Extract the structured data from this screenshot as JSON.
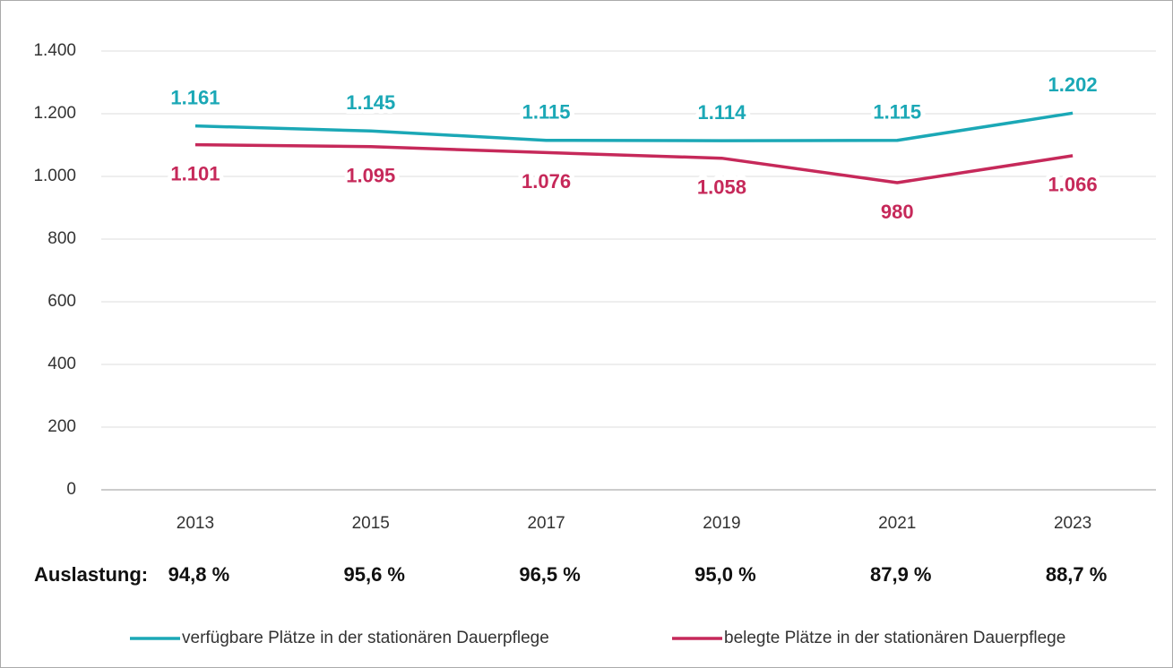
{
  "chart_data": {
    "type": "line",
    "categories": [
      "2013",
      "2015",
      "2017",
      "2019",
      "2021",
      "2023"
    ],
    "series": [
      {
        "name": "verfügbare Plätze in der stationären Dauerpflege",
        "color": "#1ba8b6",
        "values": [
          1161,
          1145,
          1115,
          1114,
          1115,
          1202
        ],
        "value_labels": [
          "1.161",
          "1.145",
          "1.115",
          "1.114",
          "1.115",
          "1.202"
        ]
      },
      {
        "name": "belegte Plätze in der stationären Dauerpflege",
        "color": "#c6295a",
        "values": [
          1101,
          1095,
          1076,
          1058,
          980,
          1066
        ],
        "value_labels": [
          "1.101",
          "1.095",
          "1.076",
          "1.058",
          "980",
          "1.066"
        ]
      }
    ],
    "ylim": [
      0,
      1400
    ],
    "yticks": [
      0,
      200,
      400,
      600,
      800,
      {
        "value": 1000,
        "label": "1.000"
      },
      {
        "value": 1200,
        "label": "1.200"
      },
      {
        "value": 1400,
        "label": "1.400"
      }
    ],
    "grid": true,
    "utilization": {
      "label": "Auslastung:",
      "values": [
        94.8,
        95.6,
        96.5,
        95.0,
        87.9,
        88.7
      ],
      "value_labels": [
        "94,8 %",
        "95,6 %",
        "96,5 %",
        "95,0 %",
        "87,9 %",
        "88,7 %"
      ]
    }
  }
}
